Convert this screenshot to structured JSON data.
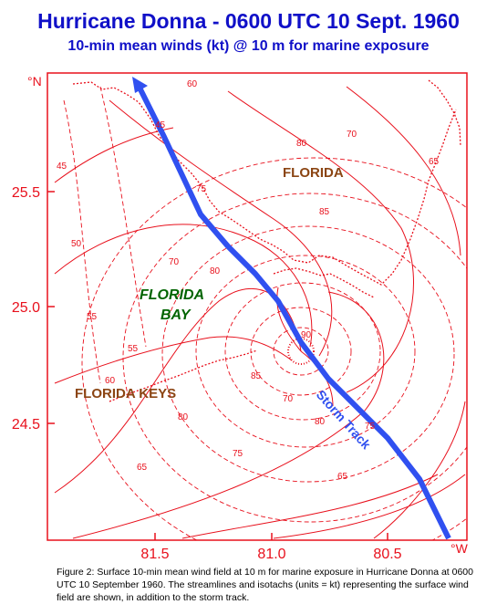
{
  "header": {
    "title": "Hurricane Donna - 0600 UTC 10 Sept. 1960",
    "subtitle": "10-min mean winds (kt) @ 10 m for marine exposure"
  },
  "map": {
    "lat_ticks": [
      "25.5",
      "25.0",
      "24.5"
    ],
    "lon_ticks": [
      "81.5",
      "81.0",
      "80.5"
    ],
    "corner_north": "°N",
    "corner_west": "°W",
    "region_labels": {
      "florida": "FLORIDA",
      "florida_bay_line1": "FLORIDA",
      "florida_bay_line2": "BAY",
      "florida_keys": "FLORIDA KEYS"
    },
    "storm_track_label": "Storm Track",
    "isotach_labels": [
      "45",
      "50",
      "55",
      "60",
      "65",
      "70",
      "75",
      "80",
      "85",
      "90"
    ],
    "colors": {
      "contours": "#e8101c",
      "track": "#3050f0",
      "title": "#1010c8",
      "florida_label": "#8b4513",
      "bay_label": "#006400"
    }
  },
  "caption": {
    "text": "Figure 2:  Surface 10-min mean wind field at 10 m for marine exposure in Hurricane Donna at 0600 UTC 10 September 1960. The streamlines and isotachs (units = kt) representing the surface wind field are shown, in addition to the storm track."
  }
}
